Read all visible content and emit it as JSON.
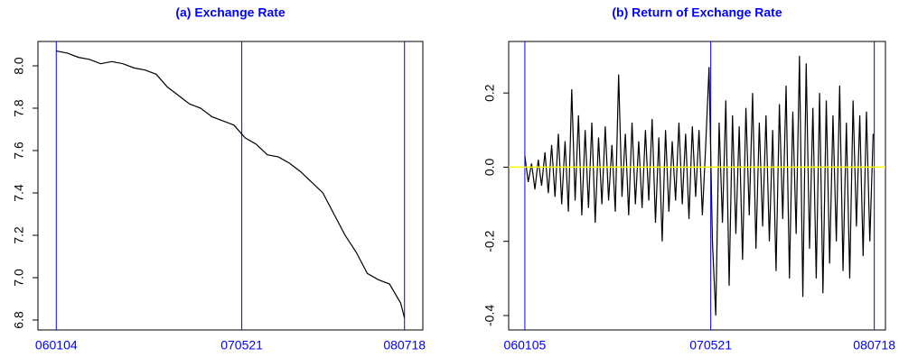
{
  "chart_data": [
    {
      "type": "line",
      "title": "(a) Exchange Rate",
      "color": "#000000",
      "xtick_color": "#0000ff",
      "title_color": "#0000ff",
      "x": [
        0,
        20,
        40,
        60,
        80,
        100,
        120,
        140,
        160,
        180,
        200,
        220,
        240,
        260,
        280,
        300,
        320,
        340,
        360,
        380,
        400,
        420,
        440,
        460,
        480,
        500,
        520,
        540,
        560,
        580,
        600,
        620,
        627
      ],
      "values": [
        8.07,
        8.06,
        8.04,
        8.03,
        8.01,
        8.02,
        8.01,
        7.99,
        7.98,
        7.96,
        7.9,
        7.86,
        7.82,
        7.8,
        7.76,
        7.74,
        7.72,
        7.66,
        7.63,
        7.58,
        7.57,
        7.54,
        7.5,
        7.45,
        7.4,
        7.3,
        7.2,
        7.12,
        7.02,
        6.99,
        6.97,
        6.88,
        6.81
      ],
      "xlim": [
        -33,
        660
      ],
      "ylim": [
        6.753,
        8.115
      ],
      "xticks": [
        {
          "value": 0,
          "label": "060104"
        },
        {
          "value": 334,
          "label": "070521"
        },
        {
          "value": 627,
          "label": "080718"
        }
      ],
      "yticks": [
        6.8,
        {
          "value": 7.0,
          "label": "7.0"
        },
        7.2,
        7.4,
        7.6,
        7.8,
        {
          "value": 8.0,
          "label": "8.0"
        }
      ]
    },
    {
      "type": "line",
      "title": "(b) Return of Exchange Rate",
      "color": "#000000",
      "xtick_color": "#0000ff",
      "title_color": "#0000ff",
      "hline": 0,
      "hline_color": "#ffff00",
      "x": [
        0,
        6,
        12,
        18,
        24,
        30,
        36,
        42,
        48,
        54,
        60,
        66,
        72,
        78,
        84,
        90,
        96,
        102,
        108,
        114,
        120,
        126,
        132,
        138,
        144,
        150,
        156,
        162,
        168,
        174,
        180,
        186,
        192,
        198,
        204,
        210,
        216,
        222,
        228,
        234,
        240,
        246,
        252,
        258,
        264,
        270,
        276,
        282,
        288,
        294,
        300,
        306,
        312,
        318,
        324,
        330,
        336,
        342,
        348,
        354,
        360,
        366,
        372,
        378,
        384,
        390,
        396,
        402,
        408,
        414,
        420,
        426,
        432,
        438,
        444,
        450,
        456,
        462,
        468,
        474,
        480,
        486,
        492,
        498,
        504,
        510,
        516,
        522,
        528,
        534,
        540,
        546,
        552,
        558,
        564,
        570,
        576,
        582,
        588,
        594,
        600,
        606,
        612,
        618,
        624
      ],
      "values": [
        0.03,
        -0.04,
        0.01,
        -0.06,
        0.02,
        -0.05,
        0.04,
        -0.07,
        0.06,
        -0.08,
        0.09,
        -0.1,
        0.07,
        -0.12,
        0.21,
        -0.09,
        0.14,
        -0.13,
        0.1,
        -0.11,
        0.12,
        -0.15,
        0.08,
        -0.1,
        0.11,
        -0.09,
        0.06,
        -0.12,
        0.25,
        -0.08,
        0.09,
        -0.13,
        0.12,
        -0.1,
        0.07,
        -0.11,
        0.1,
        -0.09,
        0.13,
        -0.15,
        0.08,
        -0.2,
        0.1,
        -0.12,
        0.07,
        -0.09,
        0.12,
        -0.1,
        0.09,
        -0.14,
        0.11,
        -0.08,
        0.1,
        -0.13,
        0.06,
        0.27,
        -0.2,
        -0.4,
        0.12,
        -0.15,
        0.18,
        -0.32,
        0.14,
        -0.18,
        0.11,
        -0.25,
        0.16,
        -0.13,
        0.2,
        -0.22,
        0.12,
        -0.16,
        0.14,
        -0.2,
        0.1,
        -0.28,
        0.17,
        -0.14,
        0.22,
        -0.3,
        0.15,
        -0.18,
        0.3,
        -0.35,
        0.28,
        -0.22,
        0.16,
        -0.3,
        0.2,
        -0.34,
        0.18,
        -0.26,
        0.14,
        -0.2,
        0.22,
        -0.28,
        0.12,
        -0.3,
        0.18,
        -0.16,
        0.14,
        -0.24,
        0.15,
        -0.2,
        0.09
      ],
      "xlim": [
        -29,
        646
      ],
      "ylim": [
        -0.439,
        0.339
      ],
      "xticks": [
        {
          "value": 0,
          "label": "060105"
        },
        {
          "value": 333,
          "label": "070521"
        },
        {
          "value": 626,
          "label": "080718"
        }
      ],
      "yticks": [
        -0.4,
        -0.2,
        {
          "value": 0,
          "label": "0.0"
        },
        0.2
      ]
    }
  ]
}
